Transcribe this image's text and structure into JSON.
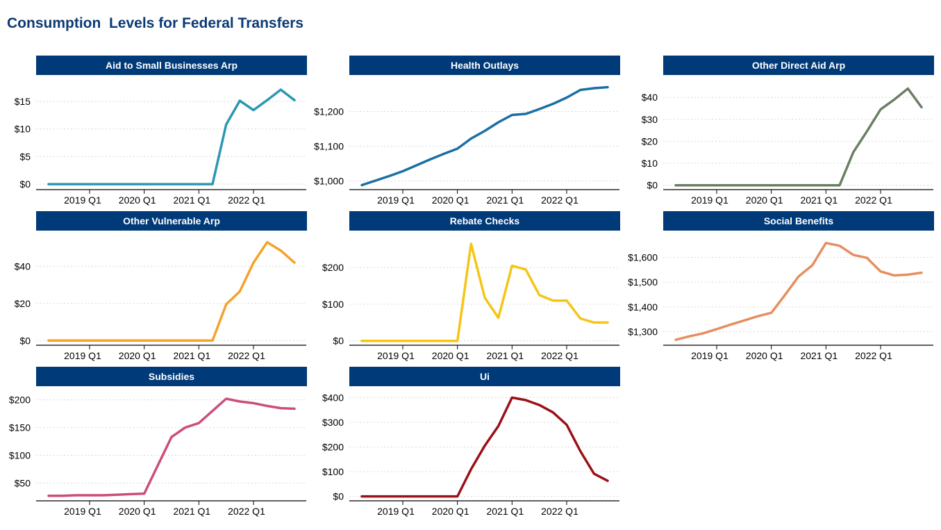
{
  "page": {
    "title": "Consumption  Levels for Federal Transfers"
  },
  "chart_data": [
    {
      "type": "line",
      "title": "Aid to Small Businesses Arp",
      "color": "#2b98b0",
      "x": [
        "2018 Q2",
        "2018 Q3",
        "2018 Q4",
        "2019 Q1",
        "2019 Q2",
        "2019 Q3",
        "2019 Q4",
        "2020 Q1",
        "2020 Q2",
        "2020 Q3",
        "2020 Q4",
        "2021 Q1",
        "2021 Q2",
        "2021 Q3",
        "2021 Q4",
        "2022 Q1",
        "2022 Q2",
        "2022 Q3",
        "2022 Q4"
      ],
      "values": [
        0,
        0,
        0,
        0,
        0,
        0,
        0,
        0,
        0,
        0,
        0,
        0,
        0,
        10.8,
        15.1,
        13.4,
        15.2,
        17.1,
        15.2
      ],
      "x_ticks": [
        "2019 Q1",
        "2020 Q1",
        "2021 Q1",
        "2022 Q1"
      ],
      "y_ticks": [
        0,
        5,
        10,
        15
      ],
      "y_tick_labels": [
        "$0",
        "$5",
        "$10",
        "$15"
      ],
      "ylim": [
        -1,
        18.5
      ]
    },
    {
      "type": "line",
      "title": "Health Outlays",
      "color": "#1a6fa3",
      "x": [
        "2018 Q2",
        "2018 Q3",
        "2018 Q4",
        "2019 Q1",
        "2019 Q2",
        "2019 Q3",
        "2019 Q4",
        "2020 Q1",
        "2020 Q2",
        "2020 Q3",
        "2020 Q4",
        "2021 Q1",
        "2021 Q2",
        "2021 Q3",
        "2021 Q4",
        "2022 Q1",
        "2022 Q2",
        "2022 Q3",
        "2022 Q4"
      ],
      "values": [
        988,
        1001,
        1014,
        1028,
        1045,
        1062,
        1078,
        1093,
        1122,
        1144,
        1169,
        1190,
        1193,
        1207,
        1222,
        1240,
        1262,
        1267,
        1270
      ],
      "x_ticks": [
        "2019 Q1",
        "2020 Q1",
        "2021 Q1",
        "2022 Q1"
      ],
      "y_ticks": [
        1000,
        1100,
        1200
      ],
      "y_tick_labels": [
        "$1,000",
        "$1,100",
        "$1,200"
      ],
      "ylim": [
        975,
        1285
      ]
    },
    {
      "type": "line",
      "title": "Other Direct Aid Arp",
      "color": "#6a7f64",
      "x": [
        "2018 Q2",
        "2018 Q3",
        "2018 Q4",
        "2019 Q1",
        "2019 Q2",
        "2019 Q3",
        "2019 Q4",
        "2020 Q1",
        "2020 Q2",
        "2020 Q3",
        "2020 Q4",
        "2021 Q1",
        "2021 Q2",
        "2021 Q3",
        "2021 Q4",
        "2022 Q1",
        "2022 Q2",
        "2022 Q3",
        "2022 Q4"
      ],
      "values": [
        0,
        0,
        0,
        0,
        0,
        0,
        0,
        0,
        0,
        0,
        0,
        0,
        0,
        15,
        24.5,
        34.5,
        39,
        44,
        35.5
      ],
      "x_ticks": [
        "2019 Q1",
        "2020 Q1",
        "2021 Q1",
        "2022 Q1"
      ],
      "y_ticks": [
        0,
        10,
        20,
        30,
        40
      ],
      "y_tick_labels": [
        "$0",
        "$10",
        "$20",
        "$30",
        "$40"
      ],
      "ylim": [
        -2,
        47
      ]
    },
    {
      "type": "line",
      "title": "Other Vulnerable Arp",
      "color": "#f5a22a",
      "x": [
        "2018 Q2",
        "2018 Q3",
        "2018 Q4",
        "2019 Q1",
        "2019 Q2",
        "2019 Q3",
        "2019 Q4",
        "2020 Q1",
        "2020 Q2",
        "2020 Q3",
        "2020 Q4",
        "2021 Q1",
        "2021 Q2",
        "2021 Q3",
        "2021 Q4",
        "2022 Q1",
        "2022 Q2",
        "2022 Q3",
        "2022 Q4"
      ],
      "values": [
        0,
        0,
        0,
        0,
        0,
        0,
        0,
        0,
        0,
        0,
        0,
        0,
        0,
        19.5,
        26.5,
        42,
        53,
        48.5,
        42
      ],
      "x_ticks": [
        "2019 Q1",
        "2020 Q1",
        "2021 Q1",
        "2022 Q1"
      ],
      "y_ticks": [
        0,
        20,
        40
      ],
      "y_tick_labels": [
        "$0",
        "$20",
        "$40"
      ],
      "ylim": [
        -2.5,
        55.5
      ]
    },
    {
      "type": "line",
      "title": "Rebate Checks",
      "color": "#f5c515",
      "x": [
        "2018 Q2",
        "2018 Q3",
        "2018 Q4",
        "2019 Q1",
        "2019 Q2",
        "2019 Q3",
        "2019 Q4",
        "2020 Q1",
        "2020 Q2",
        "2020 Q3",
        "2020 Q4",
        "2021 Q1",
        "2021 Q2",
        "2021 Q3",
        "2021 Q4",
        "2022 Q1",
        "2022 Q2",
        "2022 Q3",
        "2022 Q4"
      ],
      "values": [
        0,
        0,
        0,
        0,
        0,
        0,
        0,
        0,
        265,
        118,
        63,
        205,
        195,
        125,
        110,
        110,
        61,
        50,
        50
      ],
      "x_ticks": [
        "2019 Q1",
        "2020 Q1",
        "2021 Q1",
        "2022 Q1"
      ],
      "y_ticks": [
        0,
        100,
        200
      ],
      "y_tick_labels": [
        "$0",
        "$100",
        "$200"
      ],
      "ylim": [
        -12,
        282
      ]
    },
    {
      "type": "line",
      "title": "Social Benefits",
      "color": "#e68e60",
      "x": [
        "2018 Q2",
        "2018 Q3",
        "2018 Q4",
        "2019 Q1",
        "2019 Q2",
        "2019 Q3",
        "2019 Q4",
        "2020 Q1",
        "2020 Q2",
        "2020 Q3",
        "2020 Q4",
        "2021 Q1",
        "2021 Q2",
        "2021 Q3",
        "2021 Q4",
        "2022 Q1",
        "2022 Q2",
        "2022 Q3",
        "2022 Q4"
      ],
      "values": [
        1267,
        1281,
        1293,
        1310,
        1328,
        1345,
        1362,
        1376,
        1448,
        1523,
        1568,
        1658,
        1647,
        1610,
        1598,
        1543,
        1527,
        1530,
        1538
      ],
      "x_ticks": [
        "2019 Q1",
        "2020 Q1",
        "2021 Q1",
        "2022 Q1"
      ],
      "y_ticks": [
        1300,
        1400,
        1500,
        1600
      ],
      "y_tick_labels": [
        "$1,300",
        "$1,400",
        "$1,500",
        "$1,600"
      ],
      "ylim": [
        1245,
        1680
      ]
    },
    {
      "type": "line",
      "title": "Subsidies",
      "color": "#cc4d7d",
      "x": [
        "2018 Q2",
        "2018 Q3",
        "2018 Q4",
        "2019 Q1",
        "2019 Q2",
        "2019 Q3",
        "2019 Q4",
        "2020 Q1",
        "2020 Q2",
        "2020 Q3",
        "2020 Q4",
        "2021 Q1",
        "2021 Q2",
        "2021 Q3",
        "2021 Q4",
        "2022 Q1",
        "2022 Q2",
        "2022 Q3",
        "2022 Q4"
      ],
      "values": [
        27,
        27,
        28,
        28,
        28,
        29,
        30,
        31,
        82,
        133,
        150,
        158,
        180,
        202,
        197,
        194,
        189,
        185,
        184
      ],
      "x_ticks": [
        "2019 Q1",
        "2020 Q1",
        "2021 Q1",
        "2022 Q1"
      ],
      "y_ticks": [
        50,
        100,
        150,
        200
      ],
      "y_tick_labels": [
        "$50",
        "$100",
        "$150",
        "$200"
      ],
      "ylim": [
        18,
        212
      ]
    },
    {
      "type": "line",
      "title": "Ui",
      "color": "#9b1016",
      "x": [
        "2018 Q2",
        "2018 Q3",
        "2018 Q4",
        "2019 Q1",
        "2019 Q2",
        "2019 Q3",
        "2019 Q4",
        "2020 Q1",
        "2020 Q2",
        "2020 Q3",
        "2020 Q4",
        "2021 Q1",
        "2021 Q2",
        "2021 Q3",
        "2021 Q4",
        "2022 Q1",
        "2022 Q2",
        "2022 Q3",
        "2022 Q4"
      ],
      "values": [
        0,
        0,
        0,
        0,
        0,
        0,
        0,
        0,
        110,
        205,
        285,
        400,
        390,
        370,
        340,
        290,
        183,
        92,
        63
      ],
      "x_ticks": [
        "2019 Q1",
        "2020 Q1",
        "2021 Q1",
        "2022 Q1"
      ],
      "y_ticks": [
        0,
        100,
        200,
        300,
        400
      ],
      "y_tick_labels": [
        "$0",
        "$100",
        "$200",
        "$300",
        "$400"
      ],
      "ylim": [
        -18,
        418
      ]
    }
  ]
}
